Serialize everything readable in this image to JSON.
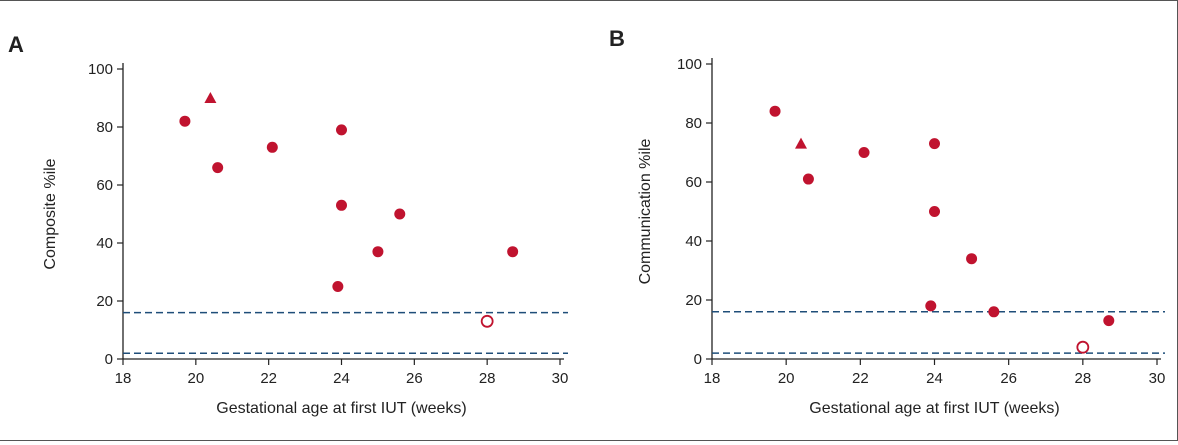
{
  "colors": {
    "marker": "#c0132f",
    "axis": "#222222",
    "dashed": "#1f4e79"
  },
  "chart_data": [
    {
      "panel_label": "A",
      "type": "scatter",
      "xlabel": "Gestational age at first IUT (weeks)",
      "ylabel": "Composite %ile",
      "xlim": [
        18,
        30
      ],
      "ylim": [
        0,
        100
      ],
      "xticks": [
        18,
        20,
        22,
        24,
        26,
        28,
        30
      ],
      "yticks": [
        0,
        20,
        40,
        60,
        80,
        100
      ],
      "reference_lines_y": [
        16,
        2
      ],
      "points": [
        {
          "x": 19.7,
          "y": 82,
          "marker": "filled-circle"
        },
        {
          "x": 20.4,
          "y": 90,
          "marker": "filled-triangle"
        },
        {
          "x": 20.6,
          "y": 66,
          "marker": "filled-circle"
        },
        {
          "x": 22.1,
          "y": 73,
          "marker": "filled-circle"
        },
        {
          "x": 24.0,
          "y": 79,
          "marker": "filled-circle"
        },
        {
          "x": 24.0,
          "y": 53,
          "marker": "filled-circle"
        },
        {
          "x": 23.9,
          "y": 25,
          "marker": "filled-circle"
        },
        {
          "x": 25.0,
          "y": 37,
          "marker": "filled-circle"
        },
        {
          "x": 25.6,
          "y": 50,
          "marker": "filled-circle"
        },
        {
          "x": 28.7,
          "y": 37,
          "marker": "filled-circle"
        },
        {
          "x": 28.0,
          "y": 13,
          "marker": "open-circle"
        }
      ]
    },
    {
      "panel_label": "B",
      "type": "scatter",
      "xlabel": "Gestational age at first IUT (weeks)",
      "ylabel": "Communication %ile",
      "xlim": [
        18,
        30
      ],
      "ylim": [
        0,
        100
      ],
      "xticks": [
        18,
        20,
        22,
        24,
        26,
        28,
        30
      ],
      "yticks": [
        0,
        20,
        40,
        60,
        80,
        100
      ],
      "reference_lines_y": [
        16,
        2
      ],
      "points": [
        {
          "x": 19.7,
          "y": 84,
          "marker": "filled-circle"
        },
        {
          "x": 20.4,
          "y": 73,
          "marker": "filled-triangle"
        },
        {
          "x": 20.6,
          "y": 61,
          "marker": "filled-circle"
        },
        {
          "x": 22.1,
          "y": 70,
          "marker": "filled-circle"
        },
        {
          "x": 24.0,
          "y": 73,
          "marker": "filled-circle"
        },
        {
          "x": 24.0,
          "y": 50,
          "marker": "filled-circle"
        },
        {
          "x": 23.9,
          "y": 18,
          "marker": "filled-circle"
        },
        {
          "x": 25.0,
          "y": 34,
          "marker": "filled-circle"
        },
        {
          "x": 25.6,
          "y": 16,
          "marker": "filled-circle"
        },
        {
          "x": 28.7,
          "y": 13,
          "marker": "filled-circle"
        },
        {
          "x": 28.0,
          "y": 4,
          "marker": "open-circle"
        }
      ]
    }
  ]
}
